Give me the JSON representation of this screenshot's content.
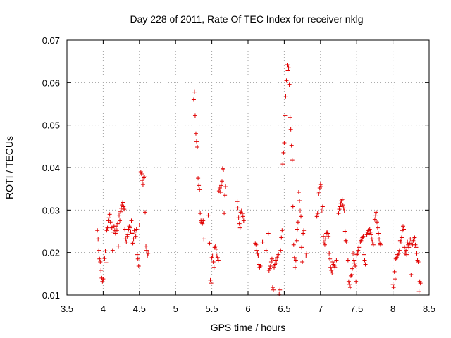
{
  "chart_data": {
    "type": "scatter",
    "title": "Day 228 of 2011, Rate Of TEC Index for receiver nklg",
    "xlabel": "GPS time / hours",
    "ylabel": "ROTI / TECUs",
    "xlim": [
      3.5,
      8.5
    ],
    "ylim": [
      0.01,
      0.07
    ],
    "xticks": [
      3.5,
      4,
      4.5,
      5,
      5.5,
      6,
      6.5,
      7,
      7.5,
      8,
      8.5
    ],
    "xtick_labels": [
      "3.5",
      "4",
      "4.5",
      "5",
      "5.5",
      "6",
      "6.5",
      "7",
      "7.5",
      "8",
      "8.5"
    ],
    "yticks": [
      0.01,
      0.02,
      0.03,
      0.04,
      0.05,
      0.06,
      0.07
    ],
    "ytick_labels": [
      "0.01",
      "0.02",
      "0.03",
      "0.04",
      "0.05",
      "0.06",
      "0.07"
    ],
    "grid": true,
    "marker": "+",
    "color": "#e00000",
    "points": [
      [
        3.92,
        0.0252
      ],
      [
        3.93,
        0.0232
      ],
      [
        3.94,
        0.0205
      ],
      [
        3.95,
        0.0185
      ],
      [
        3.96,
        0.0178
      ],
      [
        3.97,
        0.0158
      ],
      [
        3.98,
        0.014
      ],
      [
        3.99,
        0.0132
      ],
      [
        4.0,
        0.0138
      ],
      [
        4.01,
        0.0192
      ],
      [
        4.02,
        0.0186
      ],
      [
        4.03,
        0.0204
      ],
      [
        4.04,
        0.0176
      ],
      [
        4.05,
        0.0252
      ],
      [
        4.06,
        0.0258
      ],
      [
        4.07,
        0.0275
      ],
      [
        4.08,
        0.0282
      ],
      [
        4.09,
        0.029
      ],
      [
        4.1,
        0.0272
      ],
      [
        4.12,
        0.0258
      ],
      [
        4.13,
        0.0205
      ],
      [
        4.14,
        0.0248
      ],
      [
        4.15,
        0.0262
      ],
      [
        4.16,
        0.0252
      ],
      [
        4.17,
        0.0245
      ],
      [
        4.18,
        0.0262
      ],
      [
        4.19,
        0.0252
      ],
      [
        4.2,
        0.0268
      ],
      [
        4.21,
        0.0215
      ],
      [
        4.22,
        0.0288
      ],
      [
        4.23,
        0.0275
      ],
      [
        4.24,
        0.0296
      ],
      [
        4.25,
        0.0304
      ],
      [
        4.26,
        0.0312
      ],
      [
        4.27,
        0.0318
      ],
      [
        4.28,
        0.0308
      ],
      [
        4.29,
        0.0302
      ],
      [
        4.3,
        0.0255
      ],
      [
        4.31,
        0.0232
      ],
      [
        4.32,
        0.0225
      ],
      [
        4.33,
        0.0238
      ],
      [
        4.34,
        0.0242
      ],
      [
        4.35,
        0.0255
      ],
      [
        4.36,
        0.0262
      ],
      [
        4.37,
        0.0258
      ],
      [
        4.38,
        0.0248
      ],
      [
        4.39,
        0.0275
      ],
      [
        4.4,
        0.0245
      ],
      [
        4.41,
        0.0222
      ],
      [
        4.42,
        0.0232
      ],
      [
        4.43,
        0.0252
      ],
      [
        4.44,
        0.0248
      ],
      [
        4.45,
        0.0238
      ],
      [
        4.46,
        0.0255
      ],
      [
        4.47,
        0.0195
      ],
      [
        4.48,
        0.0185
      ],
      [
        4.49,
        0.0168
      ],
      [
        4.5,
        0.0265
      ],
      [
        4.52,
        0.039
      ],
      [
        4.53,
        0.0385
      ],
      [
        4.54,
        0.037
      ],
      [
        4.55,
        0.036
      ],
      [
        4.56,
        0.0376
      ],
      [
        4.57,
        0.0378
      ],
      [
        4.58,
        0.0295
      ],
      [
        4.59,
        0.0215
      ],
      [
        4.6,
        0.0205
      ],
      [
        4.61,
        0.0192
      ],
      [
        4.62,
        0.0198
      ],
      [
        5.25,
        0.056
      ],
      [
        5.26,
        0.0578
      ],
      [
        5.27,
        0.0522
      ],
      [
        5.28,
        0.048
      ],
      [
        5.29,
        0.0462
      ],
      [
        5.3,
        0.0448
      ],
      [
        5.31,
        0.0375
      ],
      [
        5.32,
        0.0358
      ],
      [
        5.33,
        0.0348
      ],
      [
        5.34,
        0.0292
      ],
      [
        5.35,
        0.0275
      ],
      [
        5.36,
        0.0272
      ],
      [
        5.37,
        0.0268
      ],
      [
        5.38,
        0.0275
      ],
      [
        5.39,
        0.0232
      ],
      [
        5.45,
        0.0288
      ],
      [
        5.47,
        0.0222
      ],
      [
        5.48,
        0.0135
      ],
      [
        5.49,
        0.0128
      ],
      [
        5.5,
        0.0188
      ],
      [
        5.51,
        0.0192
      ],
      [
        5.52,
        0.0178
      ],
      [
        5.53,
        0.0165
      ],
      [
        5.54,
        0.0212
      ],
      [
        5.55,
        0.0215
      ],
      [
        5.56,
        0.0208
      ],
      [
        5.57,
        0.0192
      ],
      [
        5.58,
        0.0188
      ],
      [
        5.59,
        0.0182
      ],
      [
        5.6,
        0.0345
      ],
      [
        5.61,
        0.0352
      ],
      [
        5.62,
        0.0342
      ],
      [
        5.63,
        0.0358
      ],
      [
        5.64,
        0.0368
      ],
      [
        5.65,
        0.0398
      ],
      [
        5.66,
        0.0395
      ],
      [
        5.67,
        0.0292
      ],
      [
        5.68,
        0.0335
      ],
      [
        5.69,
        0.0355
      ],
      [
        5.85,
        0.032
      ],
      [
        5.86,
        0.0305
      ],
      [
        5.87,
        0.0282
      ],
      [
        5.88,
        0.0268
      ],
      [
        5.89,
        0.0258
      ],
      [
        5.9,
        0.0295
      ],
      [
        5.91,
        0.0298
      ],
      [
        5.92,
        0.0292
      ],
      [
        5.93,
        0.0285
      ],
      [
        5.94,
        0.0275
      ],
      [
        6.1,
        0.0222
      ],
      [
        6.11,
        0.0218
      ],
      [
        6.12,
        0.0205
      ],
      [
        6.13,
        0.0198
      ],
      [
        6.14,
        0.0192
      ],
      [
        6.15,
        0.0172
      ],
      [
        6.16,
        0.0165
      ],
      [
        6.17,
        0.0168
      ],
      [
        6.2,
        0.0225
      ],
      [
        6.25,
        0.0205
      ],
      [
        6.28,
        0.0245
      ],
      [
        6.29,
        0.0158
      ],
      [
        6.3,
        0.0162
      ],
      [
        6.31,
        0.0168
      ],
      [
        6.32,
        0.0178
      ],
      [
        6.33,
        0.0185
      ],
      [
        6.34,
        0.0118
      ],
      [
        6.35,
        0.0112
      ],
      [
        6.36,
        0.0165
      ],
      [
        6.37,
        0.0172
      ],
      [
        6.38,
        0.0182
      ],
      [
        6.39,
        0.0175
      ],
      [
        6.4,
        0.0188
      ],
      [
        6.41,
        0.0192
      ],
      [
        6.42,
        0.0195
      ],
      [
        6.43,
        0.0102
      ],
      [
        6.44,
        0.0112
      ],
      [
        6.45,
        0.0205
      ],
      [
        6.46,
        0.0235
      ],
      [
        6.47,
        0.0252
      ],
      [
        6.48,
        0.0408
      ],
      [
        6.49,
        0.0435
      ],
      [
        6.5,
        0.0458
      ],
      [
        6.51,
        0.0522
      ],
      [
        6.52,
        0.0568
      ],
      [
        6.53,
        0.0605
      ],
      [
        6.54,
        0.0642
      ],
      [
        6.55,
        0.0628
      ],
      [
        6.56,
        0.0635
      ],
      [
        6.57,
        0.0595
      ],
      [
        6.58,
        0.0518
      ],
      [
        6.59,
        0.049
      ],
      [
        6.6,
        0.0452
      ],
      [
        6.61,
        0.0418
      ],
      [
        6.62,
        0.0308
      ],
      [
        6.63,
        0.0218
      ],
      [
        6.64,
        0.0188
      ],
      [
        6.65,
        0.0165
      ],
      [
        6.66,
        0.0182
      ],
      [
        6.67,
        0.0228
      ],
      [
        6.68,
        0.0255
      ],
      [
        6.69,
        0.0272
      ],
      [
        6.7,
        0.0342
      ],
      [
        6.71,
        0.0322
      ],
      [
        6.72,
        0.0298
      ],
      [
        6.73,
        0.0285
      ],
      [
        6.74,
        0.0212
      ],
      [
        6.75,
        0.0178
      ],
      [
        6.76,
        0.0245
      ],
      [
        6.77,
        0.0252
      ],
      [
        6.8,
        0.0192
      ],
      [
        6.81,
        0.0198
      ],
      [
        6.95,
        0.0285
      ],
      [
        6.96,
        0.0292
      ],
      [
        6.97,
        0.0338
      ],
      [
        6.98,
        0.0342
      ],
      [
        6.99,
        0.0352
      ],
      [
        7.0,
        0.036
      ],
      [
        7.01,
        0.0355
      ],
      [
        7.02,
        0.0298
      ],
      [
        7.03,
        0.0308
      ],
      [
        7.04,
        0.0238
      ],
      [
        7.05,
        0.0225
      ],
      [
        7.06,
        0.0218
      ],
      [
        7.07,
        0.0232
      ],
      [
        7.08,
        0.0245
      ],
      [
        7.09,
        0.0248
      ],
      [
        7.1,
        0.0245
      ],
      [
        7.11,
        0.0238
      ],
      [
        7.12,
        0.0198
      ],
      [
        7.13,
        0.0185
      ],
      [
        7.14,
        0.0165
      ],
      [
        7.15,
        0.0158
      ],
      [
        7.16,
        0.0152
      ],
      [
        7.17,
        0.0178
      ],
      [
        7.18,
        0.0172
      ],
      [
        7.19,
        0.0168
      ],
      [
        7.2,
        0.0165
      ],
      [
        7.22,
        0.0182
      ],
      [
        7.25,
        0.0292
      ],
      [
        7.26,
        0.0302
      ],
      [
        7.27,
        0.0308
      ],
      [
        7.28,
        0.0315
      ],
      [
        7.29,
        0.0322
      ],
      [
        7.3,
        0.0325
      ],
      [
        7.31,
        0.0312
      ],
      [
        7.32,
        0.0305
      ],
      [
        7.33,
        0.0298
      ],
      [
        7.34,
        0.025
      ],
      [
        7.35,
        0.0228
      ],
      [
        7.36,
        0.0225
      ],
      [
        7.38,
        0.0182
      ],
      [
        7.39,
        0.0132
      ],
      [
        7.4,
        0.0125
      ],
      [
        7.41,
        0.0118
      ],
      [
        7.42,
        0.0145
      ],
      [
        7.43,
        0.0148
      ],
      [
        7.44,
        0.0162
      ],
      [
        7.45,
        0.0198
      ],
      [
        7.46,
        0.0182
      ],
      [
        7.47,
        0.0175
      ],
      [
        7.48,
        0.0168
      ],
      [
        7.49,
        0.0132
      ],
      [
        7.5,
        0.0195
      ],
      [
        7.51,
        0.0198
      ],
      [
        7.52,
        0.0205
      ],
      [
        7.53,
        0.0212
      ],
      [
        7.55,
        0.0225
      ],
      [
        7.56,
        0.0228
      ],
      [
        7.57,
        0.0232
      ],
      [
        7.58,
        0.0235
      ],
      [
        7.59,
        0.0238
      ],
      [
        7.6,
        0.0195
      ],
      [
        7.61,
        0.0182
      ],
      [
        7.62,
        0.0172
      ],
      [
        7.64,
        0.0242
      ],
      [
        7.65,
        0.0248
      ],
      [
        7.66,
        0.0252
      ],
      [
        7.67,
        0.0245
      ],
      [
        7.68,
        0.0255
      ],
      [
        7.69,
        0.0248
      ],
      [
        7.7,
        0.0242
      ],
      [
        7.71,
        0.0232
      ],
      [
        7.72,
        0.0225
      ],
      [
        7.73,
        0.0218
      ],
      [
        7.75,
        0.0278
      ],
      [
        7.76,
        0.0288
      ],
      [
        7.77,
        0.0295
      ],
      [
        7.78,
        0.0272
      ],
      [
        7.79,
        0.0258
      ],
      [
        7.8,
        0.0245
      ],
      [
        7.81,
        0.0232
      ],
      [
        7.82,
        0.0222
      ],
      [
        7.83,
        0.0218
      ],
      [
        8.0,
        0.0125
      ],
      [
        8.01,
        0.0118
      ],
      [
        8.02,
        0.0155
      ],
      [
        8.03,
        0.0138
      ],
      [
        8.04,
        0.0185
      ],
      [
        8.05,
        0.0188
      ],
      [
        8.06,
        0.0195
      ],
      [
        8.07,
        0.0192
      ],
      [
        8.08,
        0.0198
      ],
      [
        8.09,
        0.0205
      ],
      [
        8.1,
        0.0228
      ],
      [
        8.11,
        0.0225
      ],
      [
        8.12,
        0.0235
      ],
      [
        8.13,
        0.0252
      ],
      [
        8.14,
        0.0262
      ],
      [
        8.15,
        0.0255
      ],
      [
        8.16,
        0.0212
      ],
      [
        8.17,
        0.0198
      ],
      [
        8.18,
        0.0205
      ],
      [
        8.19,
        0.0195
      ],
      [
        8.2,
        0.0225
      ],
      [
        8.21,
        0.0218
      ],
      [
        8.22,
        0.0212
      ],
      [
        8.23,
        0.0222
      ],
      [
        8.24,
        0.0232
      ],
      [
        8.25,
        0.0148
      ],
      [
        8.26,
        0.0225
      ],
      [
        8.27,
        0.0218
      ],
      [
        8.28,
        0.0228
      ],
      [
        8.29,
        0.0232
      ],
      [
        8.3,
        0.0235
      ],
      [
        8.31,
        0.0218
      ],
      [
        8.32,
        0.0212
      ],
      [
        8.33,
        0.0198
      ],
      [
        8.34,
        0.0182
      ],
      [
        8.35,
        0.0178
      ],
      [
        8.36,
        0.0108
      ],
      [
        8.37,
        0.0132
      ],
      [
        8.38,
        0.0128
      ]
    ]
  }
}
